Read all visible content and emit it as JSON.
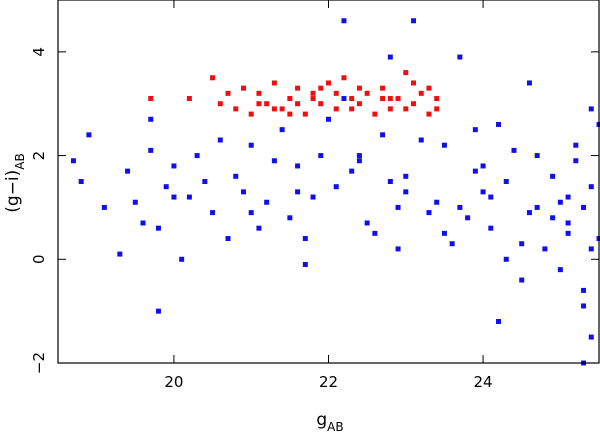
{
  "chart_data": {
    "type": "scatter",
    "title": "",
    "xlabel_main": "g",
    "xlabel_sub": "AB",
    "ylabel_main": "(g−i)",
    "ylabel_sub": "AB",
    "xlim": [
      18.5,
      25.5
    ],
    "ylim": [
      -2,
      5
    ],
    "grid": false,
    "x_ticks": [
      20,
      22,
      24
    ],
    "x_tick_labels": [
      "20",
      "22",
      "24"
    ],
    "y_ticks": [
      -2,
      0,
      2,
      4
    ],
    "y_tick_labels": [
      "−2",
      "0",
      "2",
      "4"
    ],
    "series": [
      {
        "color": "#1010ee",
        "marker": "square",
        "x": [
          18.7,
          18.8,
          18.9,
          19.1,
          19.3,
          19.4,
          19.6,
          19.7,
          19.8,
          19.9,
          20.0,
          20.1,
          20.2,
          20.3,
          20.5,
          20.6,
          20.8,
          21.0,
          21.2,
          21.4,
          21.6,
          21.7,
          21.9,
          22.1,
          22.2,
          22.4,
          22.6,
          22.8,
          23.0,
          23.1,
          23.3,
          23.5,
          23.7,
          23.9,
          24.1,
          24.3,
          24.5,
          24.7,
          24.9,
          25.1,
          25.3,
          25.5,
          20.9,
          21.5,
          22.3,
          23.4,
          24.2,
          24.8,
          25.2,
          19.5,
          20.4,
          21.8,
          22.7,
          23.6,
          24.0,
          24.6,
          25.0,
          25.4,
          21.1,
          22.0,
          22.9,
          23.8,
          24.4,
          25.3,
          21.3,
          22.5,
          23.2,
          24.9,
          25.4,
          20.7,
          22.2,
          23.0,
          24.1,
          25.1,
          19.8,
          22.9,
          24.6,
          25.2,
          23.7,
          24.3,
          25.0,
          25.5,
          21.6,
          22.4,
          23.5,
          24.7,
          25.3,
          20.0,
          21.0,
          22.8,
          24.2,
          25.4,
          23.9,
          24.5,
          25.1,
          25.4,
          19.7,
          21.7,
          24.0,
          25.3
        ],
        "y": [
          1.9,
          1.5,
          2.4,
          1.0,
          0.1,
          1.7,
          0.7,
          2.1,
          -1.0,
          1.4,
          1.8,
          0.0,
          1.2,
          2.0,
          0.9,
          2.3,
          1.6,
          2.2,
          1.1,
          2.5,
          1.8,
          -0.1,
          2.0,
          1.4,
          4.6,
          1.9,
          0.5,
          3.9,
          1.3,
          4.6,
          0.9,
          2.2,
          1.0,
          2.5,
          0.6,
          1.5,
          0.3,
          2.0,
          0.8,
          1.2,
          -0.6,
          0.4,
          1.3,
          0.8,
          1.7,
          1.1,
          2.6,
          0.2,
          1.9,
          1.1,
          1.5,
          1.2,
          2.4,
          0.3,
          1.8,
          0.9,
          -0.2,
          1.4,
          0.6,
          2.7,
          1.0,
          0.8,
          2.1,
          1.0,
          1.9,
          0.7,
          2.3,
          1.6,
          0.2,
          0.4,
          3.1,
          1.6,
          1.2,
          0.5,
          0.6,
          0.2,
          3.4,
          2.2,
          3.9,
          0.0,
          1.1,
          2.6,
          1.3,
          2.0,
          0.5,
          1.0,
          -0.9,
          1.2,
          0.9,
          1.5,
          -1.2,
          2.9,
          1.7,
          -0.4,
          0.7,
          -1.5,
          2.7,
          0.4,
          1.3,
          -2.0
        ]
      },
      {
        "color": "#ee1010",
        "marker": "square",
        "x": [
          19.7,
          20.2,
          20.5,
          20.6,
          20.8,
          20.9,
          21.0,
          21.1,
          21.2,
          21.3,
          21.4,
          21.5,
          21.6,
          21.7,
          21.8,
          21.9,
          22.0,
          22.1,
          22.2,
          22.3,
          22.4,
          22.5,
          22.6,
          22.7,
          22.8,
          22.9,
          23.0,
          23.1,
          23.2,
          23.3,
          23.4,
          21.1,
          21.5,
          21.9,
          22.3,
          22.7,
          23.1,
          23.4,
          20.7,
          21.3,
          21.8,
          22.4,
          23.0,
          21.6,
          22.1,
          22.8,
          23.3
        ],
        "y": [
          3.1,
          3.1,
          3.5,
          3.0,
          2.9,
          3.3,
          2.8,
          3.2,
          3.0,
          3.4,
          2.9,
          3.1,
          3.3,
          2.8,
          3.2,
          3.0,
          3.4,
          2.9,
          3.5,
          3.1,
          3.0,
          3.2,
          2.8,
          3.3,
          2.9,
          3.1,
          3.6,
          3.0,
          3.2,
          2.8,
          3.1,
          3.0,
          2.8,
          3.3,
          2.9,
          3.1,
          3.4,
          2.9,
          3.2,
          2.9,
          3.1,
          3.3,
          2.9,
          3.0,
          3.2,
          3.1,
          3.3
        ]
      }
    ]
  }
}
